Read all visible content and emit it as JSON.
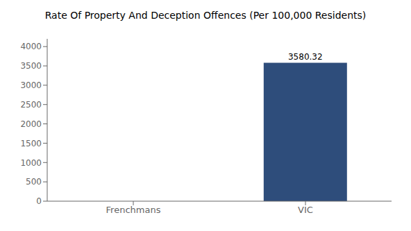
{
  "chart_data": {
    "type": "bar",
    "title": "Rate Of Property And Deception Offences (Per 100,000 Residents)",
    "categories": [
      "Frenchmans",
      "VIC"
    ],
    "values": [
      0,
      3580.32
    ],
    "color": "#2e4d7b",
    "ylim": [
      0,
      4200
    ],
    "yticks": [
      0,
      500,
      1000,
      1500,
      2000,
      2500,
      3000,
      3500,
      4000
    ],
    "grid": false,
    "data_labels": true
  }
}
